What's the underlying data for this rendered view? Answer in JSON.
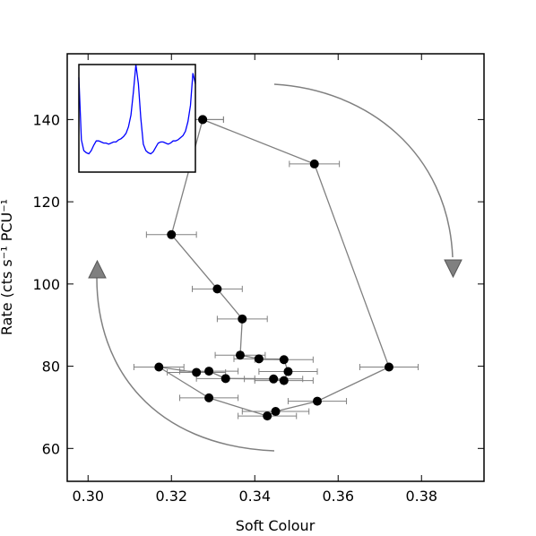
{
  "chart_data": {
    "type": "scatter",
    "title": "",
    "xlabel": "Soft Colour",
    "ylabel": "Rate (cts s⁻¹ PCU⁻¹",
    "xlim": [
      0.295,
      0.395
    ],
    "ylim": [
      52,
      156
    ],
    "x_ticks": [
      0.3,
      0.32,
      0.34,
      0.36,
      0.38
    ],
    "x_tick_labels": [
      "0.30",
      "0.32",
      "0.34",
      "0.36",
      "0.38"
    ],
    "y_ticks": [
      60,
      80,
      100,
      120,
      140
    ],
    "y_tick_labels": [
      "60",
      "80",
      "100",
      "120",
      "140"
    ],
    "grid": false,
    "colors": {
      "points": "#000000",
      "lines": "#808080",
      "arrows": "#808080",
      "inset_line": "#0000ff"
    },
    "series": [
      {
        "points": [
          {
            "x": 0.3275,
            "y": 140.0,
            "xerr": 0.005
          },
          {
            "x": 0.3543,
            "y": 129.2,
            "xerr": 0.006
          },
          {
            "x": 0.3722,
            "y": 79.8,
            "xerr": 0.007
          },
          {
            "x": 0.355,
            "y": 71.5,
            "xerr": 0.007
          },
          {
            "x": 0.345,
            "y": 69.0,
            "xerr": 0.008
          },
          {
            "x": 0.343,
            "y": 67.9,
            "xerr": 0.007
          },
          {
            "x": 0.329,
            "y": 72.3,
            "xerr": 0.007
          },
          {
            "x": 0.317,
            "y": 79.8,
            "xerr": 0.006
          },
          {
            "x": 0.326,
            "y": 78.5,
            "xerr": 0.007
          },
          {
            "x": 0.329,
            "y": 78.8,
            "xerr": 0.007
          },
          {
            "x": 0.333,
            "y": 77.0,
            "xerr": 0.007
          },
          {
            "x": 0.3445,
            "y": 76.9,
            "xerr": 0.007
          },
          {
            "x": 0.347,
            "y": 76.5,
            "xerr": 0.007
          },
          {
            "x": 0.348,
            "y": 78.7,
            "xerr": 0.007
          },
          {
            "x": 0.347,
            "y": 81.6,
            "xerr": 0.007
          },
          {
            "x": 0.341,
            "y": 81.8,
            "xerr": 0.006
          },
          {
            "x": 0.3365,
            "y": 82.7,
            "xerr": 0.006
          },
          {
            "x": 0.337,
            "y": 91.5,
            "xerr": 0.006
          },
          {
            "x": 0.331,
            "y": 98.8,
            "xerr": 0.006
          },
          {
            "x": 0.32,
            "y": 112.0,
            "xerr": 0.006
          },
          {
            "x": 0.3275,
            "y": 140.0,
            "xerr": 0.005
          }
        ]
      }
    ],
    "inset": {
      "type": "line",
      "color": "#0000ff",
      "values": [
        0.88,
        0.3,
        0.2,
        0.18,
        0.17,
        0.2,
        0.25,
        0.29,
        0.29,
        0.28,
        0.27,
        0.27,
        0.26,
        0.27,
        0.28,
        0.28,
        0.3,
        0.31,
        0.33,
        0.36,
        0.42,
        0.53,
        0.75,
        1.0,
        0.82,
        0.5,
        0.26,
        0.2,
        0.18,
        0.17,
        0.19,
        0.23,
        0.27,
        0.28,
        0.28,
        0.27,
        0.26,
        0.27,
        0.29,
        0.29,
        0.3,
        0.32,
        0.34,
        0.38,
        0.47,
        0.62,
        0.92,
        0.82
      ]
    },
    "arrows": [
      {
        "direction": "clockwise-down",
        "side": "right"
      },
      {
        "direction": "clockwise-up",
        "side": "left"
      }
    ]
  }
}
